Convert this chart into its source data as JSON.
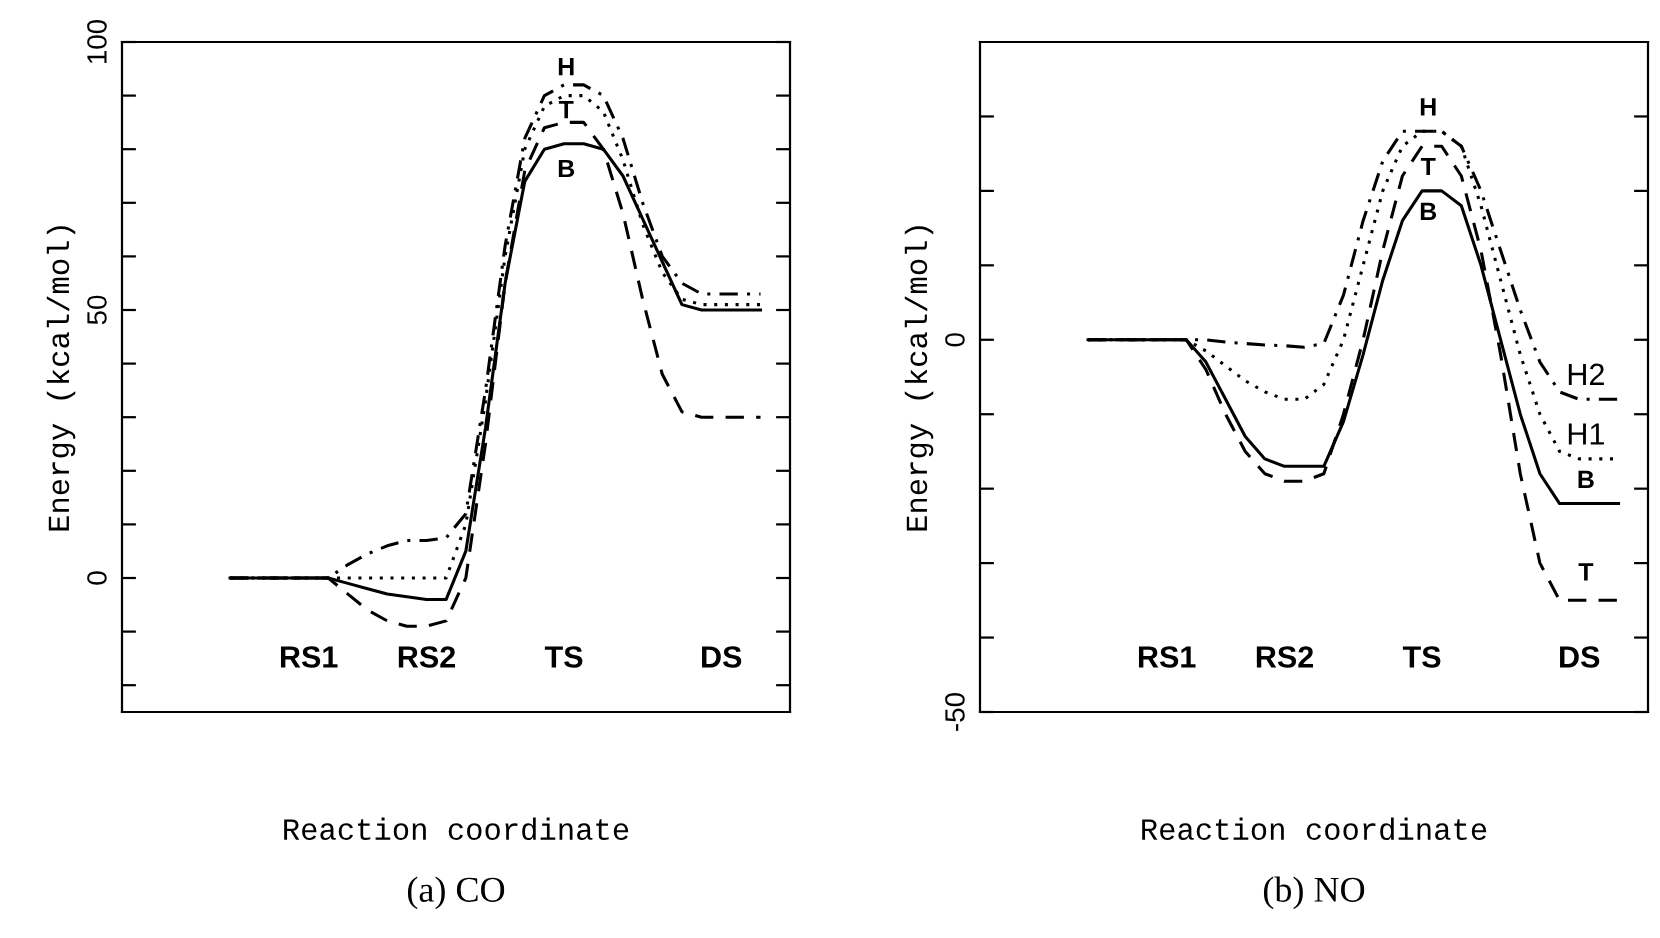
{
  "chart_data": [
    {
      "type": "line",
      "title": "(a) CO",
      "xlabel": "Reaction coordinate",
      "ylabel": "Energy (kcal/mol)",
      "categories": [
        null,
        null,
        null,
        null,
        null,
        null,
        null,
        null,
        null,
        "RS1",
        null,
        null,
        null,
        null,
        null,
        "RS2",
        null,
        null,
        null,
        null,
        null,
        null,
        "TS",
        null,
        null,
        null,
        null,
        null,
        null,
        null,
        "DS",
        null,
        null,
        null
      ],
      "series": [
        {
          "color": "#000000",
          "line_style": "solid",
          "values": [
            null,
            null,
            null,
            null,
            null,
            0,
            0,
            0,
            0,
            0,
            0,
            -1,
            -2,
            -3,
            -3.5,
            -4,
            -4,
            5,
            28,
            55,
            74,
            80,
            81,
            81,
            80,
            75,
            67,
            59,
            51,
            50,
            50,
            50,
            50,
            null
          ]
        },
        {
          "color": "#000000",
          "line_style": "dashed",
          "values": [
            null,
            null,
            null,
            null,
            null,
            0,
            0,
            0,
            0,
            0,
            0,
            -3,
            -6,
            -8,
            -9,
            -9,
            -8,
            0,
            25,
            55,
            76,
            84,
            85,
            85,
            80,
            68,
            52,
            38,
            31,
            30,
            30,
            30,
            30,
            null
          ]
        },
        {
          "color": "#000000",
          "line_style": "dotted",
          "values": [
            null,
            null,
            null,
            null,
            null,
            0,
            0,
            0,
            0,
            0,
            0,
            0,
            0,
            0,
            0,
            0,
            0,
            10,
            33,
            60,
            80,
            88,
            90,
            90,
            87,
            78,
            66,
            57,
            52,
            51,
            51,
            51,
            51,
            null
          ]
        },
        {
          "color": "#000000",
          "line_style": "dashdot",
          "values": [
            null,
            null,
            null,
            null,
            null,
            0,
            0,
            0,
            0,
            0,
            0,
            2.5,
            4.5,
            6,
            7,
            7,
            7.5,
            12,
            35,
            62,
            82,
            90,
            92,
            92,
            90,
            82,
            70,
            60,
            55,
            53,
            53,
            53,
            53,
            null
          ]
        }
      ],
      "ylim": [
        -25,
        100
      ],
      "yticks": [
        {
          "value": -20,
          "label": null
        },
        {
          "value": -10,
          "label": null
        },
        0,
        {
          "value": 10,
          "label": null
        },
        {
          "value": 20,
          "label": null
        },
        {
          "value": 30,
          "label": null
        },
        {
          "value": 40,
          "label": null
        },
        50,
        {
          "value": 60,
          "label": null
        },
        {
          "value": 70,
          "label": null
        },
        {
          "value": 80,
          "label": null
        },
        {
          "value": 90,
          "label": null
        },
        100
      ],
      "annotations": [
        "H",
        "T",
        "B"
      ]
    },
    {
      "type": "line",
      "title": "(b) NO",
      "xlabel": "Reaction coordinate",
      "ylabel": "Energy (kcal/mol)",
      "categories": [
        null,
        null,
        null,
        null,
        null,
        null,
        null,
        null,
        null,
        "RS1",
        null,
        null,
        null,
        null,
        null,
        "RS2",
        null,
        null,
        null,
        null,
        null,
        null,
        "TS",
        null,
        null,
        null,
        null,
        null,
        null,
        null,
        "DS",
        null,
        null,
        null
      ],
      "series": [
        {
          "color": "#000000",
          "line_style": "solid",
          "values": [
            null,
            null,
            null,
            null,
            null,
            0,
            0,
            0,
            0,
            0,
            0,
            -3,
            -8,
            -13,
            -16,
            -17,
            -17,
            -17,
            -11,
            -2,
            8,
            16,
            20,
            20,
            18,
            10,
            0,
            -10,
            -18,
            -22,
            -22,
            -22,
            -22,
            null
          ]
        },
        {
          "color": "#000000",
          "line_style": "dashed",
          "values": [
            null,
            null,
            null,
            null,
            null,
            0,
            0,
            0,
            0,
            0,
            0,
            -4,
            -10,
            -15,
            -18,
            -19,
            -19,
            -18,
            -10,
            0,
            12,
            22,
            26,
            26,
            22,
            12,
            -2,
            -18,
            -30,
            -35,
            -35,
            -35,
            -35,
            null
          ]
        },
        {
          "color": "#000000",
          "line_style": "dotted",
          "values": [
            null,
            null,
            null,
            null,
            null,
            0,
            0,
            0,
            0,
            0,
            0,
            -1.5,
            -3.5,
            -5.5,
            -7,
            -8,
            -8,
            -6,
            0,
            10,
            20,
            26,
            28,
            28,
            26,
            18,
            8,
            -2,
            -10,
            -15,
            -16,
            -16,
            -16,
            null
          ]
        },
        {
          "color": "#000000",
          "line_style": "dashdot",
          "values": [
            null,
            null,
            null,
            null,
            null,
            0,
            0,
            0,
            0,
            0,
            0,
            0,
            -0.3,
            -0.5,
            -0.7,
            -0.8,
            -1,
            -0.5,
            6,
            16,
            24,
            28,
            28,
            28,
            26,
            20,
            12,
            4,
            -3,
            -7,
            -8,
            -8,
            -8,
            null
          ]
        }
      ],
      "ylim": [
        -50,
        40
      ],
      "yticks": [
        -50,
        {
          "value": -40,
          "label": null
        },
        {
          "value": -30,
          "label": null
        },
        {
          "value": -20,
          "label": null
        },
        {
          "value": -10,
          "label": null
        },
        0,
        {
          "value": 10,
          "label": null
        },
        {
          "value": 20,
          "label": null
        },
        {
          "value": 30,
          "label": null
        }
      ],
      "annotations": [
        "H",
        "T",
        "B",
        "H2",
        "H1",
        "B",
        "T"
      ]
    }
  ]
}
